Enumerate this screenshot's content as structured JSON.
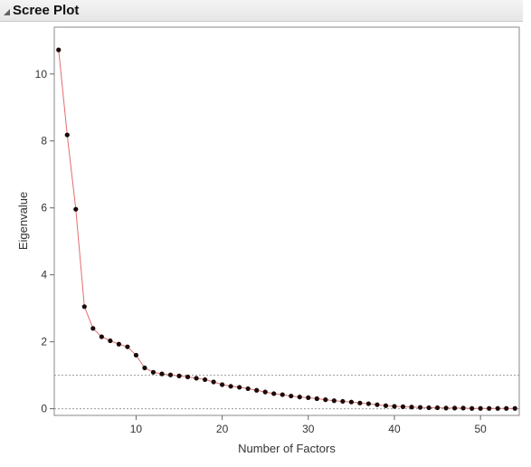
{
  "header": {
    "title": "Scree Plot"
  },
  "chart_data": {
    "type": "line",
    "title": "",
    "xlabel": "Number of Factors",
    "ylabel": "Eigenvalue",
    "xlim": [
      0.5,
      54.5
    ],
    "ylim": [
      -0.2,
      11.4
    ],
    "xticks": [
      10,
      20,
      30,
      40,
      50
    ],
    "yticks": [
      0,
      2,
      4,
      6,
      8,
      10
    ],
    "reference_lines": [
      0,
      1
    ],
    "colors": {
      "line": "#e36c6c",
      "point": "#1a0a0a",
      "reference": "#999999"
    },
    "x": [
      1,
      2,
      3,
      4,
      5,
      6,
      7,
      8,
      9,
      10,
      11,
      12,
      13,
      14,
      15,
      16,
      17,
      18,
      19,
      20,
      21,
      22,
      23,
      24,
      25,
      26,
      27,
      28,
      29,
      30,
      31,
      32,
      33,
      34,
      35,
      36,
      37,
      38,
      39,
      40,
      41,
      42,
      43,
      44,
      45,
      46,
      47,
      48,
      49,
      50,
      51,
      52,
      53,
      54
    ],
    "values": [
      10.72,
      8.18,
      5.96,
      3.05,
      2.4,
      2.15,
      2.03,
      1.93,
      1.85,
      1.6,
      1.22,
      1.09,
      1.04,
      1.01,
      0.98,
      0.95,
      0.91,
      0.87,
      0.8,
      0.72,
      0.67,
      0.64,
      0.6,
      0.55,
      0.5,
      0.45,
      0.42,
      0.38,
      0.35,
      0.33,
      0.3,
      0.27,
      0.24,
      0.22,
      0.2,
      0.17,
      0.15,
      0.12,
      0.09,
      0.07,
      0.06,
      0.05,
      0.04,
      0.03,
      0.03,
      0.02,
      0.02,
      0.02,
      0.01,
      0.01,
      0.01,
      0.01,
      0.01,
      0.01
    ]
  }
}
